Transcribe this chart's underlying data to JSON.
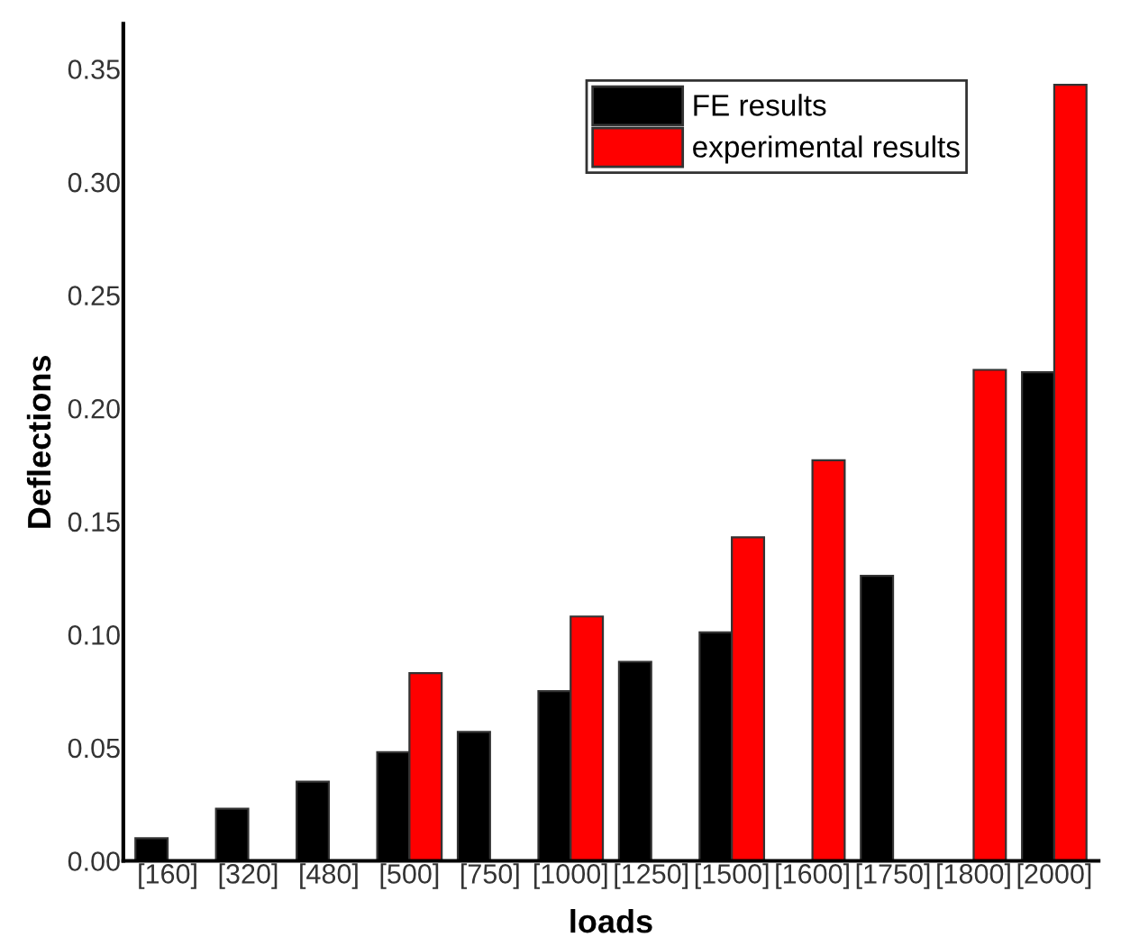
{
  "chart_data": {
    "type": "bar",
    "xlabel": "loads",
    "ylabel": "Deflections",
    "categories": [
      "[160]",
      "[320]",
      "[480]",
      "[500]",
      "[750]",
      "[1000]",
      "[1250]",
      "[1500]",
      "[1600]",
      "[1750]",
      "[1800]",
      "[2000]"
    ],
    "series": [
      {
        "name": "FE results",
        "color": "#000000",
        "values": [
          0.01,
          0.023,
          0.035,
          0.048,
          0.057,
          0.075,
          0.088,
          0.101,
          null,
          0.126,
          null,
          0.216
        ]
      },
      {
        "name": "experimental results",
        "color": "#ff0000",
        "values": [
          null,
          null,
          null,
          0.083,
          null,
          0.108,
          null,
          0.143,
          0.177,
          null,
          0.217,
          0.343
        ]
      }
    ],
    "ylim": [
      0,
      0.37
    ],
    "yticks": [
      {
        "value": 0,
        "label": "0.00"
      },
      {
        "value": 0.05,
        "label": "0.05"
      },
      {
        "value": 0.1,
        "label": "0.10"
      },
      {
        "value": 0.15,
        "label": "0.15"
      },
      {
        "value": 0.2,
        "label": "0.20"
      },
      {
        "value": 0.25,
        "label": "0.25"
      },
      {
        "value": 0.3,
        "label": "0.30"
      },
      {
        "value": 0.35,
        "label": "0.35"
      }
    ],
    "grid": false,
    "legend": "top right"
  }
}
